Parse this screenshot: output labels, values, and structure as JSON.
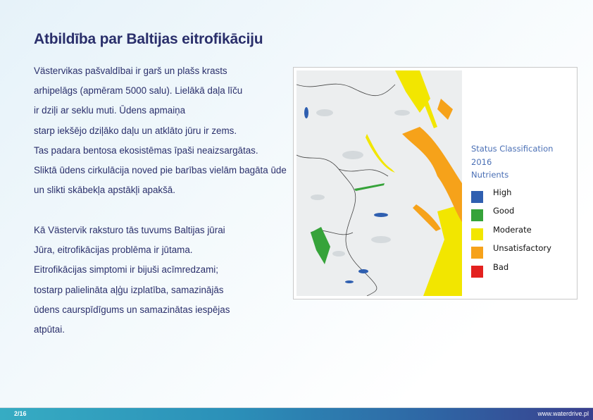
{
  "slide": {
    "title": "Atbildība par Baltijas eitrofikāciju",
    "paragraph1": [
      "Västervikas pašvaldībai ir garš un plašs krasts",
      "arhipelāgs (apmēram 5000 salu). Lielākā daļa līču",
      "ir dziļi ar seklu muti. Ūdens apmaiņa",
      "starp iekšējo dziļāko daļu un atklāto jūru ir zems.",
      "Tas padara bentosa ekosistēmas īpaši neaizsargātas.",
      "Sliktā ūdens cirkulācija noved pie barības vielām bagāta ūde",
      "un slikti skābekļa apstākļi apakšā."
    ],
    "paragraph2": [
      "Kā Västervik raksturo tās tuvums Baltijas jūrai",
      "Jūra, eitrofikācijas problēma ir jūtama.",
      "Eitrofikācijas simptomi ir bijuši acīmredzami;",
      "tostarp palielināta aļģu izplatība, samazinājās",
      "ūdens caurspīdīgums un samazinātas iespējas",
      "atpūtai."
    ]
  },
  "map": {
    "legend": {
      "title": [
        "Status Classification",
        "2016",
        "Nutrients"
      ],
      "items": [
        {
          "label": "High",
          "color": "#2f5fb0"
        },
        {
          "label": "Good",
          "color": "#36a33a"
        },
        {
          "label": "Moderate",
          "color": "#f2e600"
        },
        {
          "label": "Unsatisfactory",
          "color": "#f6a21a"
        },
        {
          "label": "Bad",
          "color": "#e3211f"
        }
      ]
    }
  },
  "footer": {
    "page": "2/16",
    "url": "www.waterdrive.pl"
  }
}
